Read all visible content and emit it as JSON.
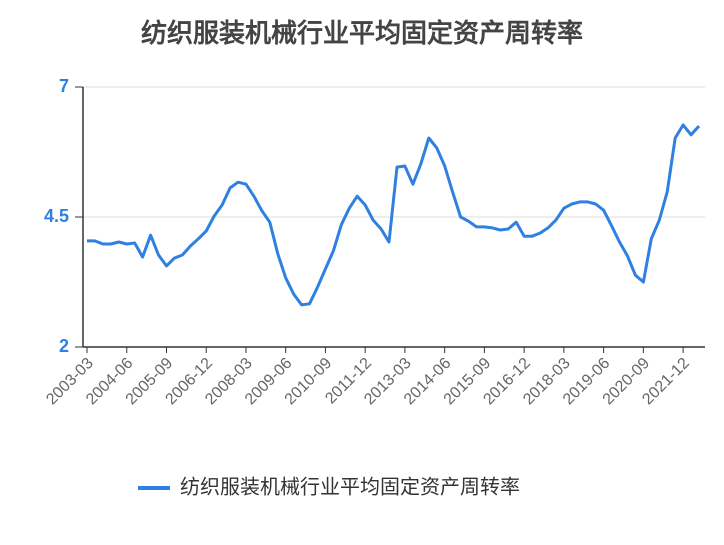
{
  "chart_data": {
    "type": "line",
    "title": "纺织服装机械行业平均固定资产周转率",
    "categories": [
      "2003-03",
      null,
      null,
      null,
      null,
      "2004-06",
      null,
      null,
      null,
      null,
      "2005-09",
      null,
      null,
      null,
      null,
      "2006-12",
      null,
      null,
      null,
      null,
      "2008-03",
      null,
      null,
      null,
      null,
      "2009-06",
      null,
      null,
      null,
      null,
      "2010-09",
      null,
      null,
      null,
      null,
      "2011-12",
      null,
      null,
      null,
      null,
      "2013-03",
      null,
      null,
      null,
      null,
      "2014-06",
      null,
      null,
      null,
      null,
      "2015-09",
      null,
      null,
      null,
      null,
      "2016-12",
      null,
      null,
      null,
      null,
      "2018-03",
      null,
      null,
      null,
      null,
      "2019-06",
      null,
      null,
      null,
      null,
      "2020-09",
      null,
      null,
      null,
      null,
      "2021-12",
      null,
      null
    ],
    "series": [
      {
        "name": "纺织服装机械行业平均固定资产周转率",
        "color": "#2f80e0",
        "values": [
          4.04,
          4.04,
          3.98,
          3.98,
          4.02,
          3.98,
          4.0,
          3.73,
          4.15,
          3.77,
          3.56,
          3.71,
          3.77,
          3.94,
          4.08,
          4.23,
          4.52,
          4.73,
          5.06,
          5.17,
          5.13,
          4.9,
          4.62,
          4.4,
          3.79,
          3.33,
          3.02,
          2.81,
          2.83,
          3.15,
          3.5,
          3.85,
          4.35,
          4.67,
          4.9,
          4.73,
          4.44,
          4.27,
          4.02,
          5.46,
          5.48,
          5.13,
          5.52,
          6.02,
          5.83,
          5.48,
          4.98,
          4.5,
          4.42,
          4.31,
          4.31,
          4.29,
          4.25,
          4.27,
          4.4,
          4.13,
          4.13,
          4.19,
          4.29,
          4.44,
          4.67,
          4.75,
          4.79,
          4.79,
          4.75,
          4.63,
          4.33,
          4.02,
          3.75,
          3.38,
          3.25,
          4.08,
          4.44,
          4.98,
          6.02,
          6.27,
          6.08,
          6.25
        ]
      }
    ],
    "ylim": [
      2,
      7
    ],
    "yticks": [
      2,
      4.5,
      7
    ],
    "grid": true,
    "legend": "bottom"
  }
}
